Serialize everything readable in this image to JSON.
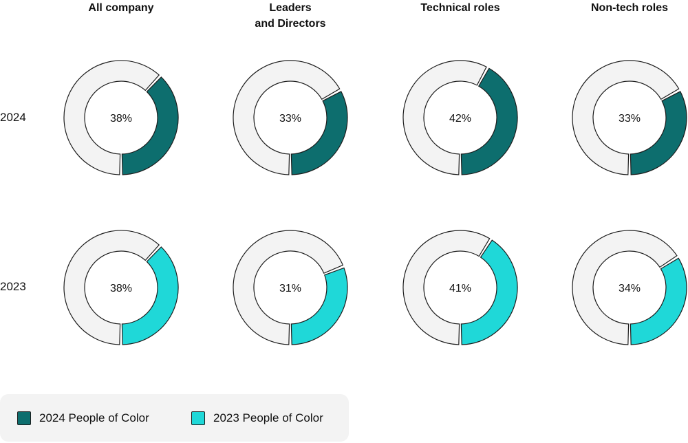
{
  "chart_data": {
    "type": "donut-grid",
    "columns": [
      "All company",
      "Leaders\nand Directors",
      "Technical roles",
      "Non-tech roles"
    ],
    "rows": [
      "2024",
      "2023"
    ],
    "values": [
      [
        38,
        33,
        42,
        33
      ],
      [
        38,
        31,
        41,
        34
      ]
    ],
    "value_suffix": "%",
    "series": [
      {
        "name": "2024 People of Color",
        "color": "#0d6e6e"
      },
      {
        "name": "2023 People of Color",
        "color": "#1fd8d8"
      }
    ],
    "remainder_color": "#f3f3f3",
    "outline_color": "#1c1c1c",
    "legend_position": "bottom-left"
  },
  "headers": {
    "col0": "All company",
    "col1_line1": "Leaders",
    "col1_line2": "and Directors",
    "col2": "Technical roles",
    "col3": "Non-tech roles"
  },
  "row_labels": {
    "r0": "2024",
    "r1": "2023"
  },
  "legend": {
    "item0": "2024 People of Color",
    "item1": "2023 People of Color"
  }
}
